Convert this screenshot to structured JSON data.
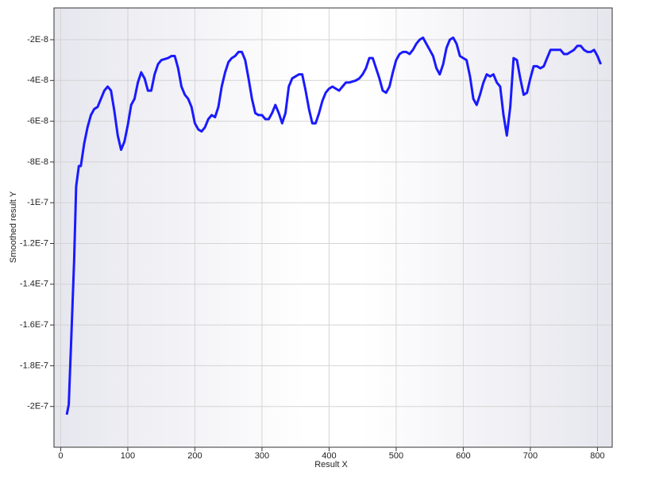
{
  "chart_data": {
    "type": "line",
    "xlabel": "Result X",
    "ylabel": "Smoothed result Y",
    "xlim": [
      -10,
      822
    ],
    "ylim": [
      -2.2e-07,
      -4.4e-09
    ],
    "xticks": [
      0,
      100,
      200,
      300,
      400,
      500,
      600,
      700,
      800
    ],
    "yticks": [
      {
        "value": -2e-08,
        "label": "-2E-8"
      },
      {
        "value": -4e-08,
        "label": "-4E-8"
      },
      {
        "value": -6e-08,
        "label": "-6E-8"
      },
      {
        "value": -8e-08,
        "label": "-8E-8"
      },
      {
        "value": -1e-07,
        "label": "-1E-7"
      },
      {
        "value": -1.2e-07,
        "label": "-1.2E-7"
      },
      {
        "value": -1.4e-07,
        "label": "-1.4E-7"
      },
      {
        "value": -1.6e-07,
        "label": "-1.6E-7"
      },
      {
        "value": -1.8e-07,
        "label": "-1.8E-7"
      },
      {
        "value": -2e-07,
        "label": "-2E-7"
      }
    ],
    "grid": true,
    "color": "#1a1aff",
    "x": [
      9,
      12,
      16,
      20,
      23,
      27,
      30,
      35,
      40,
      45,
      50,
      55,
      60,
      65,
      70,
      75,
      80,
      85,
      90,
      95,
      100,
      105,
      110,
      115,
      120,
      125,
      130,
      135,
      140,
      145,
      150,
      160,
      165,
      170,
      175,
      180,
      185,
      190,
      195,
      200,
      205,
      210,
      215,
      220,
      225,
      230,
      235,
      240,
      245,
      250,
      255,
      260,
      265,
      270,
      275,
      280,
      285,
      290,
      295,
      300,
      305,
      310,
      315,
      320,
      325,
      330,
      335,
      340,
      345,
      350,
      355,
      360,
      365,
      370,
      375,
      380,
      385,
      390,
      395,
      400,
      405,
      410,
      415,
      420,
      425,
      430,
      440,
      445,
      450,
      455,
      460,
      465,
      470,
      475,
      480,
      485,
      490,
      495,
      500,
      505,
      510,
      515,
      520,
      525,
      530,
      535,
      540,
      545,
      550,
      555,
      560,
      565,
      570,
      575,
      580,
      585,
      590,
      595,
      600,
      605,
      610,
      615,
      620,
      625,
      630,
      635,
      640,
      645,
      650,
      655,
      660,
      665,
      670,
      675,
      680,
      685,
      690,
      695,
      700,
      705,
      710,
      715,
      720,
      725,
      730,
      735,
      740,
      745,
      750,
      755,
      760,
      765,
      770,
      775,
      780,
      785,
      790,
      795,
      800,
      805
    ],
    "values": [
      -2.04e-07,
      -1.99e-07,
      -1.64e-07,
      -1.29e-07,
      -9.2e-08,
      -8.2e-08,
      -8.2e-08,
      -7.1e-08,
      -6.3e-08,
      -5.7e-08,
      -5.4e-08,
      -5.3e-08,
      -4.9e-08,
      -4.5e-08,
      -4.3e-08,
      -4.5e-08,
      -5.5e-08,
      -6.7e-08,
      -7.4e-08,
      -7e-08,
      -6.2e-08,
      -5.2e-08,
      -4.9e-08,
      -4.1e-08,
      -3.6e-08,
      -3.9e-08,
      -4.5e-08,
      -4.5e-08,
      -3.7e-08,
      -3.2e-08,
      -3e-08,
      -2.9e-08,
      -2.8e-08,
      -2.8e-08,
      -3.4e-08,
      -4.3e-08,
      -4.7e-08,
      -4.9e-08,
      -5.3e-08,
      -6.1e-08,
      -6.4e-08,
      -6.5e-08,
      -6.3e-08,
      -5.9e-08,
      -5.7e-08,
      -5.8e-08,
      -5.3e-08,
      -4.3e-08,
      -3.6e-08,
      -3.1e-08,
      -2.9e-08,
      -2.8e-08,
      -2.6e-08,
      -2.6e-08,
      -3e-08,
      -3.9e-08,
      -4.9e-08,
      -5.6e-08,
      -5.7e-08,
      -5.7e-08,
      -5.9e-08,
      -5.9e-08,
      -5.6e-08,
      -5.2e-08,
      -5.6e-08,
      -6.1e-08,
      -5.6e-08,
      -4.3e-08,
      -3.9e-08,
      -3.8e-08,
      -3.7e-08,
      -3.7e-08,
      -4.5e-08,
      -5.4e-08,
      -6.1e-08,
      -6.1e-08,
      -5.6e-08,
      -5e-08,
      -4.6e-08,
      -4.4e-08,
      -4.3e-08,
      -4.4e-08,
      -4.5e-08,
      -4.3e-08,
      -4.1e-08,
      -4.1e-08,
      -4e-08,
      -3.9e-08,
      -3.7e-08,
      -3.4e-08,
      -2.9e-08,
      -2.9e-08,
      -3.4e-08,
      -3.9e-08,
      -4.5e-08,
      -4.6e-08,
      -4.3e-08,
      -3.6e-08,
      -3e-08,
      -2.7e-08,
      -2.6e-08,
      -2.6e-08,
      -2.7e-08,
      -2.5e-08,
      -2.2e-08,
      -2e-08,
      -1.9e-08,
      -2.2e-08,
      -2.5e-08,
      -2.8e-08,
      -3.4e-08,
      -3.7e-08,
      -3.2e-08,
      -2.4e-08,
      -2e-08,
      -1.9e-08,
      -2.2e-08,
      -2.8e-08,
      -2.9e-08,
      -3e-08,
      -3.8e-08,
      -4.9e-08,
      -5.2e-08,
      -4.7e-08,
      -4.1e-08,
      -3.7e-08,
      -3.8e-08,
      -3.7e-08,
      -4.1e-08,
      -4.3e-08,
      -5.7e-08,
      -6.7e-08,
      -5.3e-08,
      -2.9e-08,
      -3e-08,
      -3.9e-08,
      -4.7e-08,
      -4.6e-08,
      -3.9e-08,
      -3.3e-08,
      -3.3e-08,
      -3.4e-08,
      -3.3e-08,
      -2.9e-08,
      -2.5e-08,
      -2.5e-08,
      -2.5e-08,
      -2.5e-08,
      -2.7e-08,
      -2.7e-08,
      -2.6e-08,
      -2.5e-08,
      -2.3e-08,
      -2.3e-08,
      -2.5e-08,
      -2.6e-08,
      -2.6e-08,
      -2.5e-08,
      -2.8e-08,
      -3.2e-08
    ]
  }
}
